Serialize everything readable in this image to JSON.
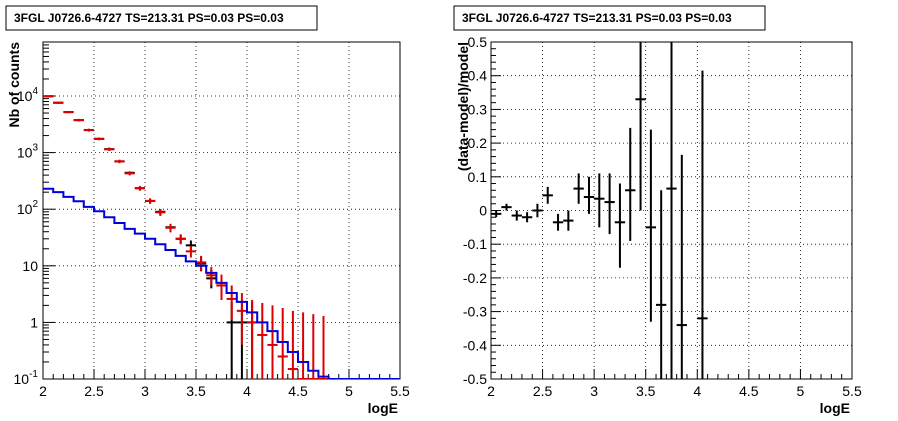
{
  "chart_data": [
    {
      "type": "scatter",
      "title": "3FGL J0726.6-4727 TS=213.31 PS=0.03 PS=0.03",
      "xlabel": "logE",
      "ylabel": "Nb of counts",
      "xlim": [
        2,
        5.5
      ],
      "ylim": [
        0.1,
        90000
      ],
      "yscale": "log",
      "grid": true,
      "x_ticks": [
        "2",
        "2.5",
        "3",
        "3.5",
        "4",
        "4.5",
        "5",
        "5.5"
      ],
      "y_ticks": [
        {
          "value": 0.1,
          "label": "10",
          "sup": "-1"
        },
        {
          "value": 1,
          "label": "1",
          "sup": ""
        },
        {
          "value": 10,
          "label": "10",
          "sup": ""
        },
        {
          "value": 100,
          "label": "10",
          "sup": "2"
        },
        {
          "value": 1000,
          "label": "10",
          "sup": "3"
        },
        {
          "value": 10000,
          "label": "10",
          "sup": "4"
        }
      ],
      "series": [
        {
          "color": "#000000",
          "kind": "errorbar",
          "points": [
            {
              "x": 2.05,
              "y": 9900,
              "lo": 9800,
              "hi": 10000
            },
            {
              "x": 2.15,
              "y": 7600,
              "lo": 7500,
              "hi": 7700
            },
            {
              "x": 2.25,
              "y": 5200,
              "lo": 5100,
              "hi": 5300
            },
            {
              "x": 2.35,
              "y": 3750,
              "lo": 3650,
              "hi": 3850
            },
            {
              "x": 2.45,
              "y": 2500,
              "lo": 2420,
              "hi": 2580
            },
            {
              "x": 2.55,
              "y": 1750,
              "lo": 1690,
              "hi": 1810
            },
            {
              "x": 2.65,
              "y": 1150,
              "lo": 1100,
              "hi": 1200
            },
            {
              "x": 2.75,
              "y": 700,
              "lo": 670,
              "hi": 730
            },
            {
              "x": 2.85,
              "y": 440,
              "lo": 415,
              "hi": 465
            },
            {
              "x": 2.95,
              "y": 235,
              "lo": 218,
              "hi": 252
            },
            {
              "x": 3.05,
              "y": 140,
              "lo": 128,
              "hi": 152
            },
            {
              "x": 3.15,
              "y": 90,
              "lo": 80,
              "hi": 100
            },
            {
              "x": 3.25,
              "y": 48,
              "lo": 41,
              "hi": 55
            },
            {
              "x": 3.35,
              "y": 30,
              "lo": 25,
              "hi": 35
            },
            {
              "x": 3.45,
              "y": 23,
              "lo": 18,
              "hi": 28
            },
            {
              "x": 3.55,
              "y": 11,
              "lo": 8,
              "hi": 14.5
            },
            {
              "x": 3.65,
              "y": 6,
              "lo": 4,
              "hi": 8.5
            },
            {
              "x": 3.75,
              "y": 4.5,
              "lo": 2.5,
              "hi": 6.5
            },
            {
              "x": 3.85,
              "y": 1,
              "lo": 0.1,
              "hi": 2.3
            },
            {
              "x": 3.95,
              "y": 1,
              "lo": 0.1,
              "hi": 2.3
            },
            {
              "x": 4.05,
              "y": 1,
              "lo": 0.1,
              "hi": 2.3
            }
          ]
        },
        {
          "color": "#dd0000",
          "kind": "errorbar",
          "points": [
            {
              "x": 2.05,
              "y": 9900,
              "lo": 9600,
              "hi": 10200
            },
            {
              "x": 2.15,
              "y": 7600,
              "lo": 7300,
              "hi": 7900
            },
            {
              "x": 2.25,
              "y": 5200,
              "lo": 4950,
              "hi": 5450
            },
            {
              "x": 2.35,
              "y": 3750,
              "lo": 3550,
              "hi": 3950
            },
            {
              "x": 2.45,
              "y": 2500,
              "lo": 2350,
              "hi": 2650
            },
            {
              "x": 2.55,
              "y": 1750,
              "lo": 1650,
              "hi": 1850
            },
            {
              "x": 2.65,
              "y": 1150,
              "lo": 1070,
              "hi": 1230
            },
            {
              "x": 2.75,
              "y": 700,
              "lo": 650,
              "hi": 750
            },
            {
              "x": 2.85,
              "y": 430,
              "lo": 395,
              "hi": 465
            },
            {
              "x": 2.95,
              "y": 235,
              "lo": 212,
              "hi": 258
            },
            {
              "x": 3.05,
              "y": 140,
              "lo": 124,
              "hi": 156
            },
            {
              "x": 3.15,
              "y": 88,
              "lo": 76,
              "hi": 100
            },
            {
              "x": 3.25,
              "y": 47,
              "lo": 39,
              "hi": 55
            },
            {
              "x": 3.35,
              "y": 30,
              "lo": 24,
              "hi": 36
            },
            {
              "x": 3.45,
              "y": 18,
              "lo": 14,
              "hi": 22.5
            },
            {
              "x": 3.55,
              "y": 11.5,
              "lo": 8.2,
              "hi": 15
            },
            {
              "x": 3.65,
              "y": 6.8,
              "lo": 4.5,
              "hi": 9.5
            },
            {
              "x": 3.75,
              "y": 4.5,
              "lo": 2.5,
              "hi": 7
            },
            {
              "x": 3.85,
              "y": 2.6,
              "lo": 1.1,
              "hi": 4.5
            },
            {
              "x": 3.95,
              "y": 1.6,
              "lo": 0.4,
              "hi": 3.3
            },
            {
              "x": 4.05,
              "y": 1,
              "lo": 0.1,
              "hi": 2.5
            },
            {
              "x": 4.15,
              "y": 0.6,
              "lo": 0.1,
              "hi": 2.2
            },
            {
              "x": 4.25,
              "y": 0.4,
              "lo": 0.1,
              "hi": 2.0
            },
            {
              "x": 4.35,
              "y": 0.25,
              "lo": 0.1,
              "hi": 1.8
            },
            {
              "x": 4.45,
              "y": 0.15,
              "lo": 0.1,
              "hi": 1.6
            },
            {
              "x": 4.55,
              "y": 0.1,
              "lo": 0.1,
              "hi": 1.5
            },
            {
              "x": 4.65,
              "y": 0.1,
              "lo": 0.1,
              "hi": 1.4
            },
            {
              "x": 4.75,
              "y": 0.1,
              "lo": 0.1,
              "hi": 1.3
            }
          ]
        },
        {
          "color": "#0000dd",
          "kind": "histogram",
          "bin_edges": [
            2.0,
            2.1,
            2.2,
            2.3,
            2.4,
            2.5,
            2.6,
            2.7,
            2.8,
            2.9,
            3.0,
            3.1,
            3.2,
            3.3,
            3.4,
            3.5,
            3.6,
            3.7,
            3.8,
            3.9,
            4.0,
            4.1,
            4.2,
            4.3,
            4.4,
            4.5,
            4.6,
            4.7,
            4.8,
            4.9,
            5.0,
            5.1,
            5.2,
            5.3,
            5.4,
            5.5
          ],
          "values": [
            230,
            200,
            165,
            138,
            110,
            92,
            72,
            57,
            45,
            37,
            30,
            24,
            19,
            15,
            12,
            10,
            7.5,
            5,
            3.3,
            2.3,
            1.5,
            1.0,
            0.7,
            0.45,
            0.3,
            0.2,
            0.14,
            0.11,
            0.1,
            0.1,
            0.1,
            0.1,
            0.1,
            0.1,
            0.1
          ]
        }
      ]
    },
    {
      "type": "scatter",
      "title": "3FGL J0726.6-4727 TS=213.31 PS=0.03 PS=0.03",
      "xlabel": "logE",
      "ylabel": "(data-model)/model",
      "xlim": [
        2,
        5.5
      ],
      "ylim": [
        -0.5,
        0.5
      ],
      "grid": true,
      "x_ticks": [
        "2",
        "2.5",
        "3",
        "3.5",
        "4",
        "4.5",
        "5",
        "5.5"
      ],
      "y_ticks": [
        "-0.5",
        "-0.4",
        "-0.3",
        "-0.2",
        "-0.1",
        "0",
        "0.1",
        "0.2",
        "0.3",
        "0.4",
        "0.5"
      ],
      "series": [
        {
          "color": "#000000",
          "kind": "errorbar",
          "points": [
            {
              "x": 2.05,
              "y": -0.01,
              "lo": -0.02,
              "hi": 0.0
            },
            {
              "x": 2.15,
              "y": 0.01,
              "lo": 0.0,
              "hi": 0.02
            },
            {
              "x": 2.25,
              "y": -0.015,
              "lo": -0.03,
              "hi": 0.0
            },
            {
              "x": 2.35,
              "y": -0.02,
              "lo": -0.035,
              "hi": -0.005
            },
            {
              "x": 2.45,
              "y": 0.0,
              "lo": -0.02,
              "hi": 0.02
            },
            {
              "x": 2.55,
              "y": 0.045,
              "lo": 0.02,
              "hi": 0.07
            },
            {
              "x": 2.65,
              "y": -0.035,
              "lo": -0.06,
              "hi": -0.01
            },
            {
              "x": 2.75,
              "y": -0.03,
              "lo": -0.06,
              "hi": 0.0
            },
            {
              "x": 2.85,
              "y": 0.065,
              "lo": 0.02,
              "hi": 0.11
            },
            {
              "x": 2.95,
              "y": 0.04,
              "lo": -0.01,
              "hi": 0.1
            },
            {
              "x": 3.05,
              "y": 0.035,
              "lo": -0.05,
              "hi": 0.11
            },
            {
              "x": 3.15,
              "y": 0.025,
              "lo": -0.07,
              "hi": 0.11
            },
            {
              "x": 3.25,
              "y": -0.035,
              "lo": -0.17,
              "hi": 0.08
            },
            {
              "x": 3.35,
              "y": 0.06,
              "lo": -0.09,
              "hi": 0.245
            },
            {
              "x": 3.45,
              "y": 0.33,
              "lo": 0.0,
              "hi": 0.5
            },
            {
              "x": 3.55,
              "y": -0.05,
              "lo": -0.33,
              "hi": 0.24
            },
            {
              "x": 3.65,
              "y": -0.28,
              "lo": -0.5,
              "hi": 0.06
            },
            {
              "x": 3.75,
              "y": 0.065,
              "lo": -0.5,
              "hi": 0.5
            },
            {
              "x": 3.85,
              "y": -0.34,
              "lo": -0.5,
              "hi": 0.165
            },
            {
              "x": 4.05,
              "y": -0.32,
              "lo": -0.5,
              "hi": 0.415
            }
          ]
        }
      ]
    }
  ]
}
